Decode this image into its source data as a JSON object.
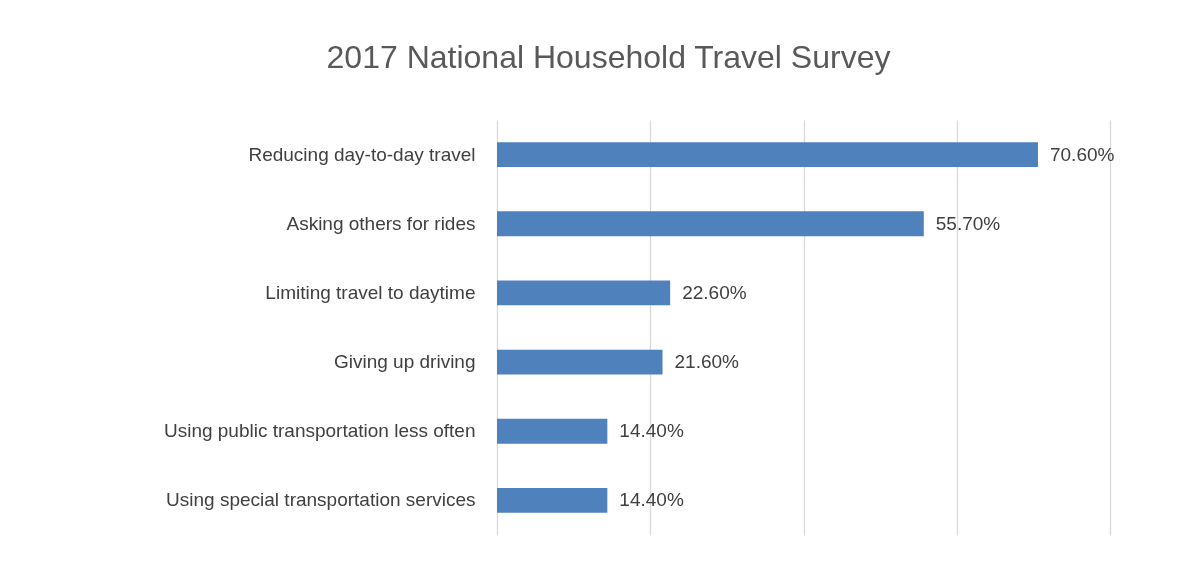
{
  "chart_data": {
    "type": "bar",
    "orientation": "horizontal",
    "title": "2017 National Household Travel Survey",
    "categories": [
      "Reducing day-to-day travel",
      "Asking others for rides",
      "Limiting travel to daytime",
      "Giving up driving",
      "Using public transportation less often",
      "Using special transportation services"
    ],
    "values": [
      70.6,
      55.7,
      22.6,
      21.6,
      14.4,
      14.4
    ],
    "value_labels": [
      "70.60%",
      "55.70%",
      "22.60%",
      "21.60%",
      "14.40%",
      "14.40%"
    ],
    "color": "#4f81bd",
    "xlim": [
      0,
      80
    ],
    "xticks": [
      {
        "value": 0,
        "label": null
      },
      {
        "value": 20,
        "label": null
      },
      {
        "value": 40,
        "label": null
      },
      {
        "value": 60,
        "label": null
      },
      {
        "value": 80,
        "label": null
      }
    ],
    "grid": "x",
    "tick_labels": "y"
  }
}
